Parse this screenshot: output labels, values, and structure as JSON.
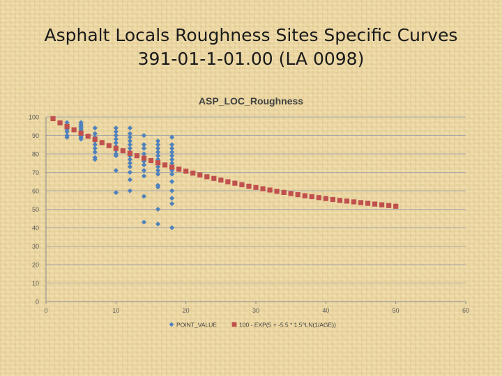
{
  "slide": {
    "title_line1": "Asphalt Locals Roughness Sites Specific Curves",
    "title_line2": "391-01-1-01.00 (LA 0098)"
  },
  "chart_data": {
    "type": "scatter",
    "title": "ASP_LOC_Roughness",
    "xlabel": "",
    "ylabel": "",
    "xlim": [
      0,
      60
    ],
    "ylim": [
      0,
      100
    ],
    "x_ticks": [
      0,
      10,
      20,
      30,
      40,
      50,
      60
    ],
    "y_ticks": [
      0,
      10,
      20,
      30,
      40,
      50,
      60,
      70,
      80,
      90,
      100
    ],
    "grid": "horizontal",
    "legend_position": "bottom",
    "series": [
      {
        "name": "POINT_VALUE",
        "color": "#4f81bd",
        "marker": "diamond",
        "points": [
          [
            3,
            97
          ],
          [
            3,
            95
          ],
          [
            3,
            94
          ],
          [
            3,
            93
          ],
          [
            3,
            92
          ],
          [
            3,
            90
          ],
          [
            3,
            89
          ],
          [
            5,
            97
          ],
          [
            5,
            96
          ],
          [
            5,
            95
          ],
          [
            5,
            94
          ],
          [
            5,
            93
          ],
          [
            5,
            92
          ],
          [
            5,
            91
          ],
          [
            5,
            90
          ],
          [
            5,
            89
          ],
          [
            5,
            88
          ],
          [
            7,
            94
          ],
          [
            7,
            91
          ],
          [
            7,
            89
          ],
          [
            7,
            87
          ],
          [
            7,
            85
          ],
          [
            7,
            83
          ],
          [
            7,
            81
          ],
          [
            7,
            78
          ],
          [
            7,
            77
          ],
          [
            10,
            94
          ],
          [
            10,
            92
          ],
          [
            10,
            90
          ],
          [
            10,
            88
          ],
          [
            10,
            86
          ],
          [
            10,
            84
          ],
          [
            10,
            82
          ],
          [
            10,
            80
          ],
          [
            10,
            79
          ],
          [
            10,
            71
          ],
          [
            10,
            59
          ],
          [
            12,
            94
          ],
          [
            12,
            91
          ],
          [
            12,
            89
          ],
          [
            12,
            87
          ],
          [
            12,
            85
          ],
          [
            12,
            83
          ],
          [
            12,
            81
          ],
          [
            12,
            79
          ],
          [
            12,
            77
          ],
          [
            12,
            75
          ],
          [
            12,
            73
          ],
          [
            12,
            70
          ],
          [
            12,
            66
          ],
          [
            12,
            60
          ],
          [
            14,
            90
          ],
          [
            14,
            85
          ],
          [
            14,
            83
          ],
          [
            14,
            80
          ],
          [
            14,
            78
          ],
          [
            14,
            76
          ],
          [
            14,
            74
          ],
          [
            14,
            71
          ],
          [
            14,
            68
          ],
          [
            14,
            57
          ],
          [
            14,
            43
          ],
          [
            16,
            87
          ],
          [
            16,
            85
          ],
          [
            16,
            83
          ],
          [
            16,
            81
          ],
          [
            16,
            79
          ],
          [
            16,
            77
          ],
          [
            16,
            75
          ],
          [
            16,
            73
          ],
          [
            16,
            71
          ],
          [
            16,
            69
          ],
          [
            16,
            63
          ],
          [
            16,
            62
          ],
          [
            16,
            50
          ],
          [
            16,
            42
          ],
          [
            18,
            89
          ],
          [
            18,
            85
          ],
          [
            18,
            83
          ],
          [
            18,
            81
          ],
          [
            18,
            79
          ],
          [
            18,
            77
          ],
          [
            18,
            75
          ],
          [
            18,
            73
          ],
          [
            18,
            71
          ],
          [
            18,
            69
          ],
          [
            18,
            65
          ],
          [
            18,
            60
          ],
          [
            18,
            56
          ],
          [
            18,
            53
          ],
          [
            18,
            40
          ]
        ]
      },
      {
        "name": "100 - EXP(5 + -5.5 * 1.5^LN(1/AGE))",
        "color": "#c0504d",
        "marker": "square",
        "points": [
          [
            1,
            99.1
          ],
          [
            2,
            96.8
          ],
          [
            3,
            94.9
          ],
          [
            4,
            93.0
          ],
          [
            5,
            91.2
          ],
          [
            6,
            89.6
          ],
          [
            7,
            87.8
          ],
          [
            8,
            86.1
          ],
          [
            9,
            84.5
          ],
          [
            10,
            83.0
          ],
          [
            11,
            81.7
          ],
          [
            12,
            80.3
          ],
          [
            13,
            79.0
          ],
          [
            14,
            77.7
          ],
          [
            15,
            76.4
          ],
          [
            16,
            75.2
          ],
          [
            17,
            74.0
          ],
          [
            18,
            72.8
          ],
          [
            19,
            71.7
          ],
          [
            20,
            70.6
          ],
          [
            21,
            69.6
          ],
          [
            22,
            68.6
          ],
          [
            23,
            67.6
          ],
          [
            24,
            66.7
          ],
          [
            25,
            65.8
          ],
          [
            26,
            64.9
          ],
          [
            27,
            64.1
          ],
          [
            28,
            63.3
          ],
          [
            29,
            62.5
          ],
          [
            30,
            61.8
          ],
          [
            31,
            61.1
          ],
          [
            32,
            60.4
          ],
          [
            33,
            59.7
          ],
          [
            34,
            59.1
          ],
          [
            35,
            58.5
          ],
          [
            36,
            57.9
          ],
          [
            37,
            57.3
          ],
          [
            38,
            56.8
          ],
          [
            39,
            56.3
          ],
          [
            40,
            55.8
          ],
          [
            41,
            55.3
          ],
          [
            42,
            54.8
          ],
          [
            43,
            54.4
          ],
          [
            44,
            54.0
          ],
          [
            45,
            53.6
          ],
          [
            46,
            53.2
          ],
          [
            47,
            52.8
          ],
          [
            48,
            52.4
          ],
          [
            49,
            52.0
          ],
          [
            50,
            51.6
          ]
        ]
      }
    ]
  }
}
